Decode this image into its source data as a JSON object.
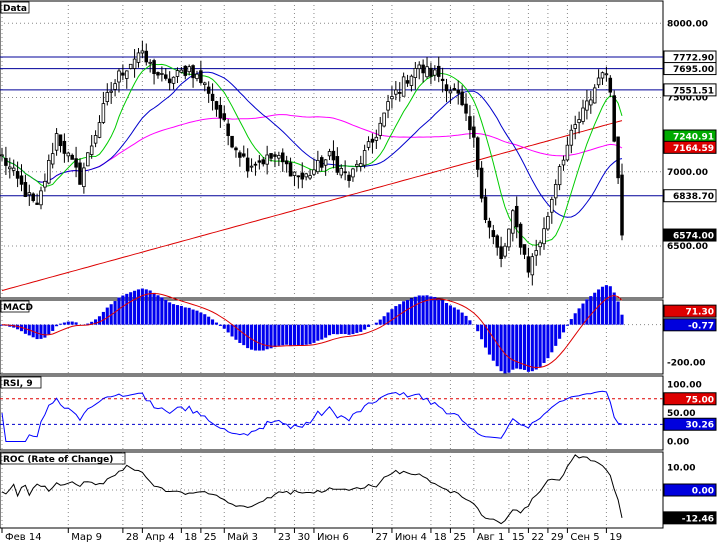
{
  "panes": {
    "price": {
      "label": "Data"
    },
    "macd": {
      "label": "MACD"
    },
    "rsi": {
      "label": "RSI, 9"
    },
    "roc": {
      "label": "ROC (Rate of Change)"
    }
  },
  "colors": {
    "sma_fast": "#00cc00",
    "sma_mid": "#0000cc",
    "sma_slow": "#ff00ff",
    "sma_long": "#dd0000",
    "hline": "#000099",
    "macd_hist": "#0000ee",
    "macd_signal": "#dd0000",
    "rsi_line": "#0000ff",
    "rsi_upper": "#dd0000",
    "rsi_lower": "#0000cc",
    "price_badge": "#000000",
    "green_badge": "#00aa00",
    "red_badge": "#dd0000",
    "blue_badge": "#0000dd"
  },
  "chart_data": [
    {
      "type": "candlestick",
      "pane": "price",
      "yticks": [
        "8000.00",
        "7500.00",
        "7000.00",
        "6500.00"
      ],
      "ylim": [
        6150,
        8150
      ],
      "horizontal_levels": [
        7772.9,
        7695.0,
        7551.51,
        6838.7
      ],
      "badges": [
        {
          "text": "7772.90",
          "value": 7772.9,
          "style": "outline"
        },
        {
          "text": "7695.00",
          "value": 7695.0,
          "style": "outline"
        },
        {
          "text": "7551.51",
          "value": 7551.51,
          "style": "outline"
        },
        {
          "text": "7240.91",
          "value": 7240.91,
          "style": "green"
        },
        {
          "text": "7164.59",
          "value": 7164.59,
          "style": "red"
        },
        {
          "text": "6838.70",
          "value": 6838.7,
          "style": "outline"
        },
        {
          "text": "6574.00",
          "value": 6574.0,
          "style": "black"
        }
      ],
      "series": [
        {
          "name": "price",
          "style": "candles"
        },
        {
          "name": "sma_fast",
          "color": "sma_fast"
        },
        {
          "name": "sma_mid",
          "color": "sma_mid"
        },
        {
          "name": "sma_slow",
          "color": "sma_slow"
        },
        {
          "name": "sma_long",
          "color": "sma_long"
        }
      ]
    },
    {
      "type": "bar",
      "pane": "macd",
      "yticks": [
        "-200.00"
      ],
      "ylim": [
        -260,
        130
      ],
      "badges": [
        {
          "text": "71.30",
          "value": 71.3,
          "style": "red"
        },
        {
          "text": "-0.77",
          "value": -0.77,
          "style": "blue"
        }
      ]
    },
    {
      "type": "line",
      "pane": "rsi",
      "yticks": [
        "100.00",
        "50.00",
        "0.00"
      ],
      "ylim": [
        -15,
        115
      ],
      "levels": [
        75,
        30
      ],
      "badges": [
        {
          "text": "75.00",
          "value": 75,
          "style": "red"
        },
        {
          "text": "30.26",
          "value": 30.26,
          "style": "blue"
        }
      ]
    },
    {
      "type": "line",
      "pane": "roc",
      "yticks": [
        "10.00"
      ],
      "ylim": [
        -17,
        17
      ],
      "badges": [
        {
          "text": "0.00",
          "value": 0,
          "style": "blue"
        },
        {
          "text": "-12.46",
          "value": -12.46,
          "style": "black"
        }
      ]
    }
  ],
  "x_axis": {
    "ticks": [
      {
        "text": "Фев 14",
        "idx": 0
      },
      {
        "text": "Мар 9",
        "idx": 17
      },
      {
        "text": "28",
        "idx": 31
      },
      {
        "text": "Апр 4",
        "idx": 36
      },
      {
        "text": "18",
        "idx": 46
      },
      {
        "text": "25",
        "idx": 51
      },
      {
        "text": "Май 3",
        "idx": 57
      },
      {
        "text": "23",
        "idx": 70
      },
      {
        "text": "30",
        "idx": 75
      },
      {
        "text": "Июн 6",
        "idx": 80
      },
      {
        "text": "27",
        "idx": 95
      },
      {
        "text": "Июн 4",
        "idx": 100
      },
      {
        "text": "18",
        "idx": 110
      },
      {
        "text": "25",
        "idx": 115
      },
      {
        "text": "Авг 1",
        "idx": 121
      },
      {
        "text": "15",
        "idx": 130
      },
      {
        "text": "22",
        "idx": 135
      },
      {
        "text": "29",
        "idx": 140
      },
      {
        "text": "Сен 5",
        "idx": 145
      },
      {
        "text": "19",
        "idx": 155
      }
    ]
  }
}
